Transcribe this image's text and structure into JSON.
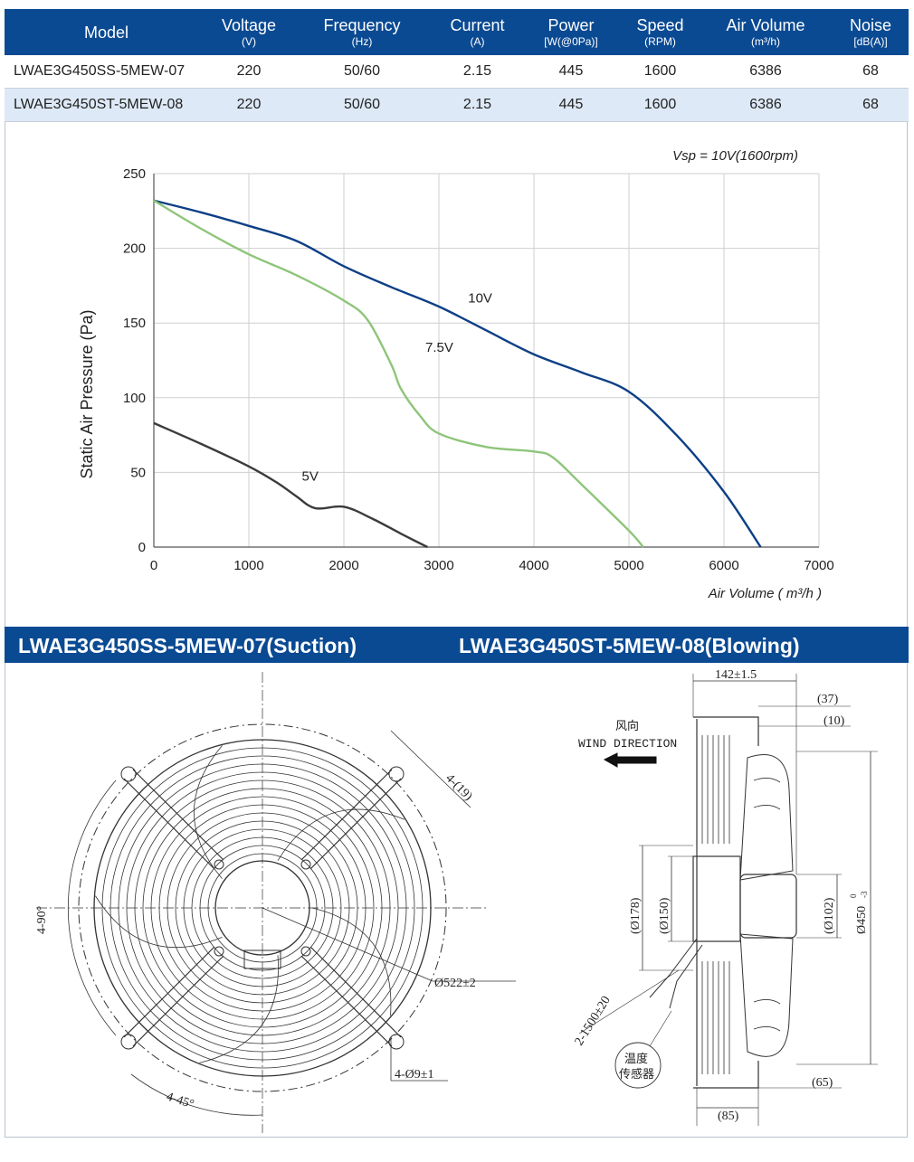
{
  "table": {
    "headers": [
      {
        "label": "Model",
        "unit": ""
      },
      {
        "label": "Voltage",
        "unit": "(V)"
      },
      {
        "label": "Frequency",
        "unit": "(Hz)"
      },
      {
        "label": "Current",
        "unit": "(A)"
      },
      {
        "label": "Power",
        "unit": "[W(@0Pa)]"
      },
      {
        "label": "Speed",
        "unit": "(RPM)"
      },
      {
        "label": "Air Volume",
        "unit": "(m³/h)"
      },
      {
        "label": "Noise",
        "unit": "[dB(A)]"
      }
    ],
    "rows": [
      [
        "LWAE3G450SS-5MEW-07",
        "220",
        "50/60",
        "2.15",
        "445",
        "1600",
        "6386",
        "68"
      ],
      [
        "LWAE3G450ST-5MEW-08",
        "220",
        "50/60",
        "2.15",
        "445",
        "1600",
        "6386",
        "68"
      ]
    ]
  },
  "chart_data": {
    "type": "line",
    "annotation": "Vsp = 10V(1600rpm)",
    "xlabel": "Air Volume ( m³/h )",
    "ylabel": "Static Air Pressure  (Pa)",
    "xlim": [
      0,
      7000
    ],
    "ylim": [
      0,
      250
    ],
    "xticks": [
      0,
      1000,
      2000,
      3000,
      4000,
      5000,
      6000,
      7000
    ],
    "yticks": [
      0,
      50,
      100,
      150,
      200,
      250
    ],
    "grid": true,
    "series": [
      {
        "name": "10V",
        "color": "#0d3f86",
        "x": [
          0,
          500,
          1000,
          1500,
          2000,
          2500,
          3000,
          3500,
          4000,
          4500,
          5000,
          5500,
          6000,
          6386
        ],
        "y": [
          232,
          224,
          215,
          205,
          188,
          174,
          161,
          145,
          129,
          117,
          104,
          75,
          37,
          0
        ]
      },
      {
        "name": "7.5V",
        "color": "#8ec57a",
        "x": [
          0,
          500,
          1000,
          1500,
          2000,
          2250,
          2500,
          2600,
          2800,
          3000,
          3500,
          4000,
          4200,
          4500,
          5000,
          5150
        ],
        "y": [
          232,
          213,
          196,
          182,
          165,
          152,
          122,
          106,
          88,
          76,
          67,
          64,
          60,
          42,
          11,
          0
        ]
      },
      {
        "name": "5V",
        "color": "#3b3b3b",
        "x": [
          0,
          500,
          1000,
          1300,
          1500,
          1700,
          2000,
          2300,
          2600,
          2880
        ],
        "y": [
          83,
          69,
          54,
          43,
          34,
          26,
          27,
          19,
          9,
          0
        ]
      }
    ]
  },
  "drawing": {
    "title_left": "LWAE3G450SS-5MEW-07(Suction)",
    "title_right": "LWAE3G450ST-5MEW-08(Blowing)",
    "dims_front": {
      "slot": "4-(19)",
      "angle_90": "4-90°",
      "angle_45": "4-45°",
      "diameter": "Ø522±2",
      "holes": "4-Ø9±1"
    },
    "dims_side": {
      "depth": "142±1.5",
      "d37": "(37)",
      "d10": "(10)",
      "d178": "(Ø178)",
      "d150": "(Ø150)",
      "d102": "(Ø102)",
      "d450": "Ø450",
      "d450_tol_top": "0",
      "d450_tol_bot": "-3",
      "cable": "2-1500±20",
      "d65": "(65)",
      "d85": "(85)",
      "wind_cn": "风向",
      "wind_en": "WIND DIRECTION",
      "sensor_cn_1": "温度",
      "sensor_cn_2": "传感器"
    }
  }
}
